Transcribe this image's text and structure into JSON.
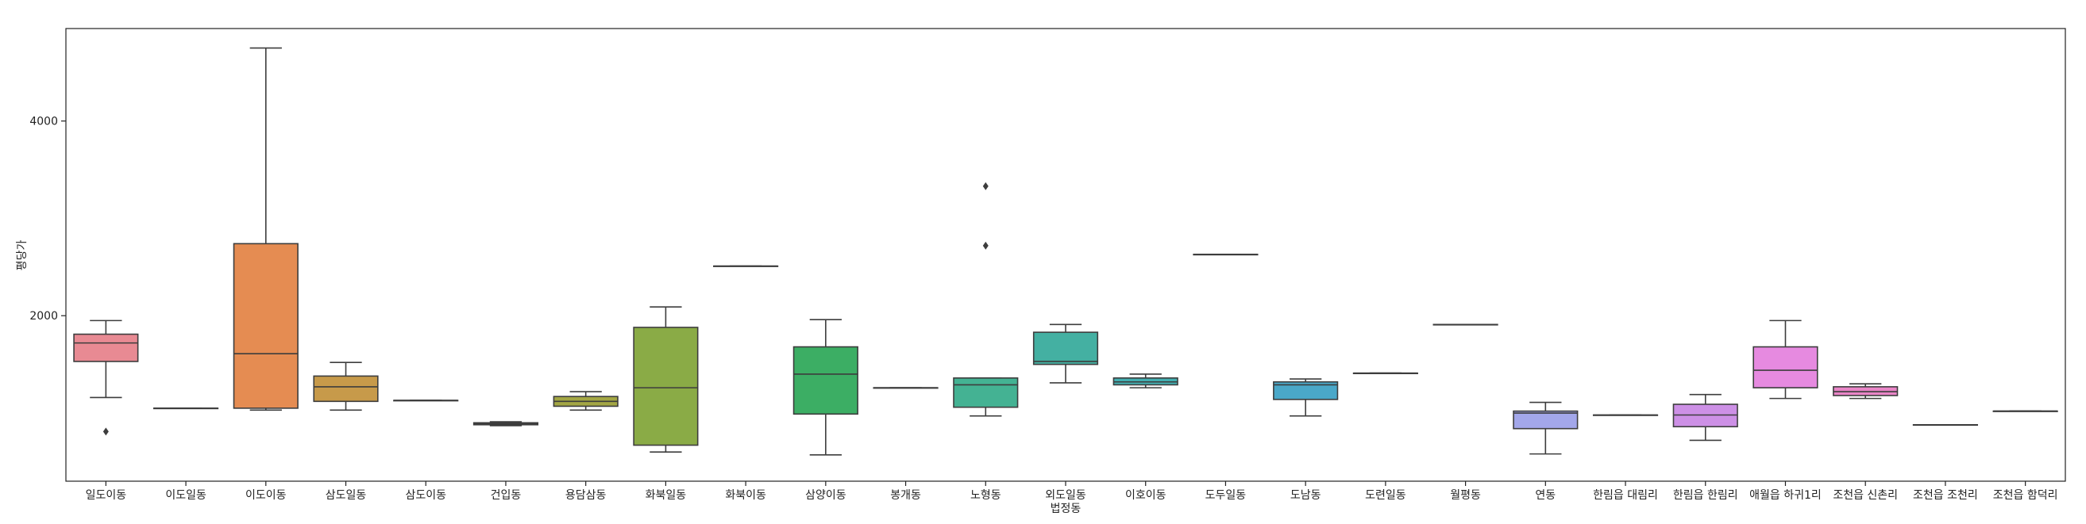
{
  "chart_data": {
    "type": "box",
    "title": "",
    "xlabel": "법정동",
    "ylabel": "평당가",
    "ylim": [
      300,
      4950
    ],
    "yticks": [
      2000,
      4000
    ],
    "grid": false,
    "categories": [
      "일도이동",
      "이도일동",
      "이도이동",
      "삼도일동",
      "삼도이동",
      "건입동",
      "용담삼동",
      "화북일동",
      "화북이동",
      "삼양이동",
      "봉개동",
      "노형동",
      "외도일동",
      "이호이동",
      "도두일동",
      "도남동",
      "도련일동",
      "월평동",
      "연동",
      "한림읍 대림리",
      "한림읍 한림리",
      "애월읍 하귀1리",
      "조천읍 신촌리",
      "조천읍 조천리",
      "조천읍 함덕리"
    ],
    "boxes": [
      {
        "whislo": 1160,
        "q1": 1530,
        "med": 1720,
        "q3": 1810,
        "whishi": 1950,
        "fliers": [
          810
        ],
        "color": "#e88a93"
      },
      {
        "whislo": 1050,
        "q1": 1050,
        "med": 1050,
        "q3": 1050,
        "whishi": 1050,
        "fliers": [],
        "color": "#e99368"
      },
      {
        "whislo": 1030,
        "q1": 1050,
        "med": 1610,
        "q3": 2740,
        "whishi": 4750,
        "fliers": [],
        "color": "#e58c52"
      },
      {
        "whislo": 1030,
        "q1": 1120,
        "med": 1270,
        "q3": 1380,
        "whishi": 1520,
        "fliers": [],
        "color": "#c79a4a"
      },
      {
        "whislo": 1130,
        "q1": 1130,
        "med": 1130,
        "q3": 1130,
        "whishi": 1130,
        "fliers": [],
        "color": "#b3a24e"
      },
      {
        "whislo": 870,
        "q1": 880,
        "med": 890,
        "q3": 900,
        "whishi": 910,
        "fliers": [],
        "color": "#9aa94f"
      },
      {
        "whislo": 1030,
        "q1": 1070,
        "med": 1120,
        "q3": 1170,
        "whishi": 1220,
        "fliers": [],
        "color": "#a3a644"
      },
      {
        "whislo": 600,
        "q1": 670,
        "med": 1260,
        "q3": 1880,
        "whishi": 2090,
        "fliers": [],
        "color": "#8aab46"
      },
      {
        "whislo": 2510,
        "q1": 2510,
        "med": 2510,
        "q3": 2510,
        "whishi": 2510,
        "fliers": [],
        "color": "#5fb35a"
      },
      {
        "whislo": 570,
        "q1": 990,
        "med": 1400,
        "q3": 1680,
        "whishi": 1960,
        "fliers": [],
        "color": "#3cae64"
      },
      {
        "whislo": 1260,
        "q1": 1260,
        "med": 1260,
        "q3": 1260,
        "whishi": 1260,
        "fliers": [],
        "color": "#3fb07e"
      },
      {
        "whislo": 970,
        "q1": 1060,
        "med": 1290,
        "q3": 1360,
        "whishi": 1360,
        "fliers": [
          2720,
          3330
        ],
        "color": "#44b293"
      },
      {
        "whislo": 1310,
        "q1": 1500,
        "med": 1530,
        "q3": 1830,
        "whishi": 1910,
        "fliers": [],
        "color": "#44b0a2"
      },
      {
        "whislo": 1260,
        "q1": 1290,
        "med": 1320,
        "q3": 1360,
        "whishi": 1400,
        "fliers": [],
        "color": "#43aeb0"
      },
      {
        "whislo": 2630,
        "q1": 2630,
        "med": 2630,
        "q3": 2630,
        "whishi": 2630,
        "fliers": [],
        "color": "#44abbd"
      },
      {
        "whislo": 970,
        "q1": 1140,
        "med": 1290,
        "q3": 1320,
        "whishi": 1350,
        "fliers": [],
        "color": "#4aa8c9"
      },
      {
        "whislo": 1410,
        "q1": 1410,
        "med": 1410,
        "q3": 1410,
        "whishi": 1410,
        "fliers": [],
        "color": "#6aa6d8"
      },
      {
        "whislo": 1910,
        "q1": 1910,
        "med": 1910,
        "q3": 1910,
        "whishi": 1910,
        "fliers": [],
        "color": "#8aa5e2"
      },
      {
        "whislo": 580,
        "q1": 840,
        "med": 1000,
        "q3": 1020,
        "whishi": 1110,
        "fliers": [],
        "color": "#a3a7ea"
      },
      {
        "whislo": 980,
        "q1": 980,
        "med": 980,
        "q3": 980,
        "whishi": 980,
        "fliers": [],
        "color": "#b9a1ea"
      },
      {
        "whislo": 720,
        "q1": 860,
        "med": 980,
        "q3": 1090,
        "whishi": 1190,
        "fliers": [],
        "color": "#cd90e6"
      },
      {
        "whislo": 1150,
        "q1": 1260,
        "med": 1440,
        "q3": 1680,
        "whishi": 1950,
        "fliers": [],
        "color": "#e68ae0"
      },
      {
        "whislo": 1150,
        "q1": 1180,
        "med": 1220,
        "q3": 1270,
        "whishi": 1300,
        "fliers": [],
        "color": "#e985c7"
      },
      {
        "whislo": 880,
        "q1": 880,
        "med": 880,
        "q3": 880,
        "whishi": 880,
        "fliers": [],
        "color": "#ea86b2"
      },
      {
        "whislo": 1020,
        "q1": 1020,
        "med": 1020,
        "q3": 1020,
        "whishi": 1020,
        "fliers": [],
        "color": "#ea88a1"
      }
    ]
  }
}
